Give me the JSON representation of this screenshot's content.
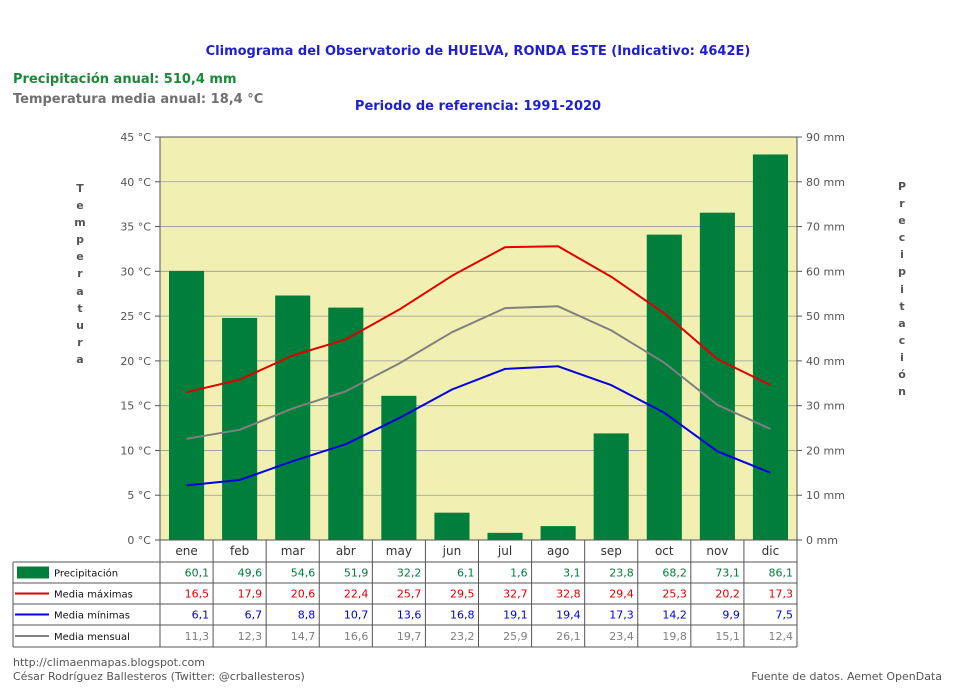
{
  "header": {
    "title": "Climograma del Observatorio de HUELVA, RONDA ESTE (Indicativo: 4642E)",
    "annual_precipitation": "Precipitación anual: 510,4 mm",
    "annual_temperature": "Temperatura media anual: 18,4 °C",
    "reference_period": "Periodo de referencia: 1991-2020"
  },
  "footer": {
    "blog": "http://climaenmapas.blogspot.com",
    "author": "César Rodríguez Ballesteros (Twitter: @crballesteros)",
    "source": "Fuente de datos. Aemet OpenData"
  },
  "colors": {
    "precipitation": "#007f3c",
    "max": "#e00000",
    "min": "#0000e0",
    "mean": "#808080",
    "plot_bg": "#f2efb2"
  },
  "chart_data": {
    "type": "bar+line",
    "categories": [
      "ene",
      "feb",
      "mar",
      "abr",
      "may",
      "jun",
      "jul",
      "ago",
      "sep",
      "oct",
      "nov",
      "dic"
    ],
    "y_left": {
      "title": "Temperatura",
      "unit": "°C",
      "range": [
        0,
        45
      ],
      "ticks": [
        "0 °C",
        "5 °C",
        "10 °C",
        "15 °C",
        "20 °C",
        "25 °C",
        "30 °C",
        "35 °C",
        "40 °C",
        "45 °C"
      ]
    },
    "y_right": {
      "title": "Precipitación",
      "unit": "mm",
      "range": [
        0,
        90
      ],
      "ticks": [
        "0 mm",
        "10 mm",
        "20 mm",
        "30 mm",
        "40 mm",
        "50 mm",
        "60 mm",
        "70 mm",
        "80 mm",
        "90 mm"
      ]
    },
    "grid": true,
    "series": [
      {
        "name": "Precipitación",
        "kind": "bar",
        "axis": "right",
        "values": [
          60.1,
          49.6,
          54.6,
          51.9,
          32.2,
          6.1,
          1.6,
          3.1,
          23.8,
          68.2,
          73.1,
          86.1
        ],
        "labels": [
          "60,1",
          "49,6",
          "54,6",
          "51,9",
          "32,2",
          "6,1",
          "1,6",
          "3,1",
          "23,8",
          "68,2",
          "73,1",
          "86,1"
        ]
      },
      {
        "name": "Media máximas",
        "kind": "line",
        "axis": "left",
        "values": [
          16.5,
          17.9,
          20.6,
          22.4,
          25.7,
          29.5,
          32.7,
          32.8,
          29.4,
          25.3,
          20.2,
          17.3
        ],
        "labels": [
          "16,5",
          "17,9",
          "20,6",
          "22,4",
          "25,7",
          "29,5",
          "32,7",
          "32,8",
          "29,4",
          "25,3",
          "20,2",
          "17,3"
        ]
      },
      {
        "name": "Media mínimas",
        "kind": "line",
        "axis": "left",
        "values": [
          6.1,
          6.7,
          8.8,
          10.7,
          13.6,
          16.8,
          19.1,
          19.4,
          17.3,
          14.2,
          9.9,
          7.5
        ],
        "labels": [
          "6,1",
          "6,7",
          "8,8",
          "10,7",
          "13,6",
          "16,8",
          "19,1",
          "19,4",
          "17,3",
          "14,2",
          "9,9",
          "7,5"
        ]
      },
      {
        "name": "Media mensual",
        "kind": "line",
        "axis": "left",
        "values": [
          11.3,
          12.3,
          14.7,
          16.6,
          19.7,
          23.2,
          25.9,
          26.1,
          23.4,
          19.8,
          15.1,
          12.4
        ],
        "labels": [
          "11,3",
          "12,3",
          "14,7",
          "16,6",
          "19,7",
          "23,2",
          "25,9",
          "26,1",
          "23,4",
          "19,8",
          "15,1",
          "12,4"
        ]
      }
    ]
  }
}
